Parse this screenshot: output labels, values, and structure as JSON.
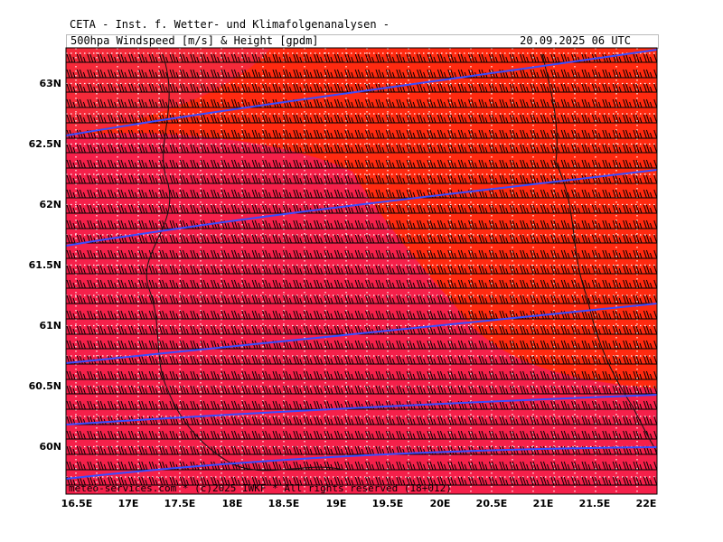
{
  "header": {
    "title": "CETA - Inst. f. Wetter- und Klimafolgenanalysen -",
    "subtitle": "500hpa Windspeed [m/s] & Height [gpdm]",
    "datetime": "20.09.2025 06 UTC"
  },
  "map": {
    "lat_labels": [
      "63N",
      "62.5N",
      "62N",
      "61.5N",
      "61N",
      "60.5N",
      "60N"
    ],
    "lon_labels": [
      "16.5E",
      "17E",
      "17.5E",
      "18E",
      "18.5E",
      "19E",
      "19.5E",
      "20E",
      "20.5E",
      "21E",
      "21.5E",
      "22E"
    ],
    "credit": "meteo-services.com * (c)2025 IWKF * All rights reserved (18+012)",
    "colors": {
      "background_red": "#ff2a10",
      "band_crimson": "#f5204a",
      "height_contour": "#3a4cff",
      "barbs": "#000000",
      "grid": "#ffffff"
    }
  }
}
